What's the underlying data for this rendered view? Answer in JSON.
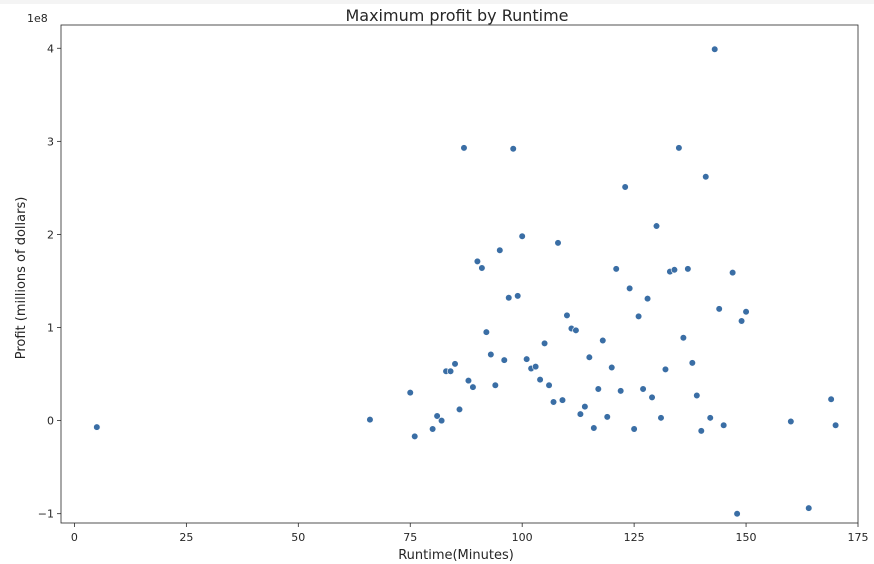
{
  "chart_data": {
    "type": "scatter",
    "title": "Maximum profit by Runtime",
    "xlabel": "Runtime(Minutes)",
    "ylabel": "Profit (millions of dollars)",
    "y_offset_label": "1e8",
    "xlim": [
      -3,
      175
    ],
    "ylim": [
      -1.1,
      4.25
    ],
    "x_ticks": [
      0,
      25,
      50,
      75,
      100,
      125,
      150,
      175
    ],
    "y_ticks": [
      -1,
      0,
      1,
      2,
      3,
      4
    ],
    "grid": false,
    "point_color": "#3a6ea5",
    "points": [
      {
        "x": 5,
        "y": -0.07
      },
      {
        "x": 66,
        "y": 0.01
      },
      {
        "x": 75,
        "y": 0.3
      },
      {
        "x": 76,
        "y": -0.17
      },
      {
        "x": 80,
        "y": -0.09
      },
      {
        "x": 81,
        "y": 0.05
      },
      {
        "x": 82,
        "y": 0.0
      },
      {
        "x": 83,
        "y": 0.53
      },
      {
        "x": 84,
        "y": 0.53
      },
      {
        "x": 85,
        "y": 0.61
      },
      {
        "x": 86,
        "y": 0.12
      },
      {
        "x": 87,
        "y": 2.93
      },
      {
        "x": 88,
        "y": 0.43
      },
      {
        "x": 89,
        "y": 0.36
      },
      {
        "x": 90,
        "y": 1.71
      },
      {
        "x": 91,
        "y": 1.64
      },
      {
        "x": 92,
        "y": 0.95
      },
      {
        "x": 93,
        "y": 0.71
      },
      {
        "x": 94,
        "y": 0.38
      },
      {
        "x": 95,
        "y": 1.83
      },
      {
        "x": 96,
        "y": 0.65
      },
      {
        "x": 97,
        "y": 1.32
      },
      {
        "x": 98,
        "y": 2.92
      },
      {
        "x": 99,
        "y": 1.34
      },
      {
        "x": 100,
        "y": 1.98
      },
      {
        "x": 101,
        "y": 0.66
      },
      {
        "x": 102,
        "y": 0.56
      },
      {
        "x": 103,
        "y": 0.58
      },
      {
        "x": 104,
        "y": 0.44
      },
      {
        "x": 105,
        "y": 0.83
      },
      {
        "x": 106,
        "y": 0.38
      },
      {
        "x": 107,
        "y": 0.2
      },
      {
        "x": 108,
        "y": 1.91
      },
      {
        "x": 109,
        "y": 0.22
      },
      {
        "x": 110,
        "y": 1.13
      },
      {
        "x": 111,
        "y": 0.99
      },
      {
        "x": 112,
        "y": 0.97
      },
      {
        "x": 113,
        "y": 0.07
      },
      {
        "x": 114,
        "y": 0.15
      },
      {
        "x": 115,
        "y": 0.68
      },
      {
        "x": 116,
        "y": -0.08
      },
      {
        "x": 117,
        "y": 0.34
      },
      {
        "x": 118,
        "y": 0.86
      },
      {
        "x": 119,
        "y": 0.04
      },
      {
        "x": 120,
        "y": 0.57
      },
      {
        "x": 121,
        "y": 1.63
      },
      {
        "x": 122,
        "y": 0.32
      },
      {
        "x": 123,
        "y": 2.51
      },
      {
        "x": 124,
        "y": 1.42
      },
      {
        "x": 125,
        "y": -0.09
      },
      {
        "x": 126,
        "y": 1.12
      },
      {
        "x": 127,
        "y": 0.34
      },
      {
        "x": 128,
        "y": 1.31
      },
      {
        "x": 129,
        "y": 0.25
      },
      {
        "x": 130,
        "y": 2.09
      },
      {
        "x": 131,
        "y": 0.03
      },
      {
        "x": 132,
        "y": 0.55
      },
      {
        "x": 133,
        "y": 1.6
      },
      {
        "x": 134,
        "y": 1.62
      },
      {
        "x": 135,
        "y": 2.93
      },
      {
        "x": 136,
        "y": 0.89
      },
      {
        "x": 137,
        "y": 1.63
      },
      {
        "x": 138,
        "y": 0.62
      },
      {
        "x": 139,
        "y": 0.27
      },
      {
        "x": 140,
        "y": -0.11
      },
      {
        "x": 141,
        "y": 2.62
      },
      {
        "x": 142,
        "y": 0.03
      },
      {
        "x": 143,
        "y": 3.99
      },
      {
        "x": 144,
        "y": 1.2
      },
      {
        "x": 145,
        "y": -0.05
      },
      {
        "x": 147,
        "y": 1.59
      },
      {
        "x": 148,
        "y": -1.0
      },
      {
        "x": 149,
        "y": 1.07
      },
      {
        "x": 150,
        "y": 1.17
      },
      {
        "x": 160,
        "y": -0.01
      },
      {
        "x": 164,
        "y": -0.94
      },
      {
        "x": 169,
        "y": 0.23
      },
      {
        "x": 170,
        "y": -0.05
      }
    ]
  }
}
